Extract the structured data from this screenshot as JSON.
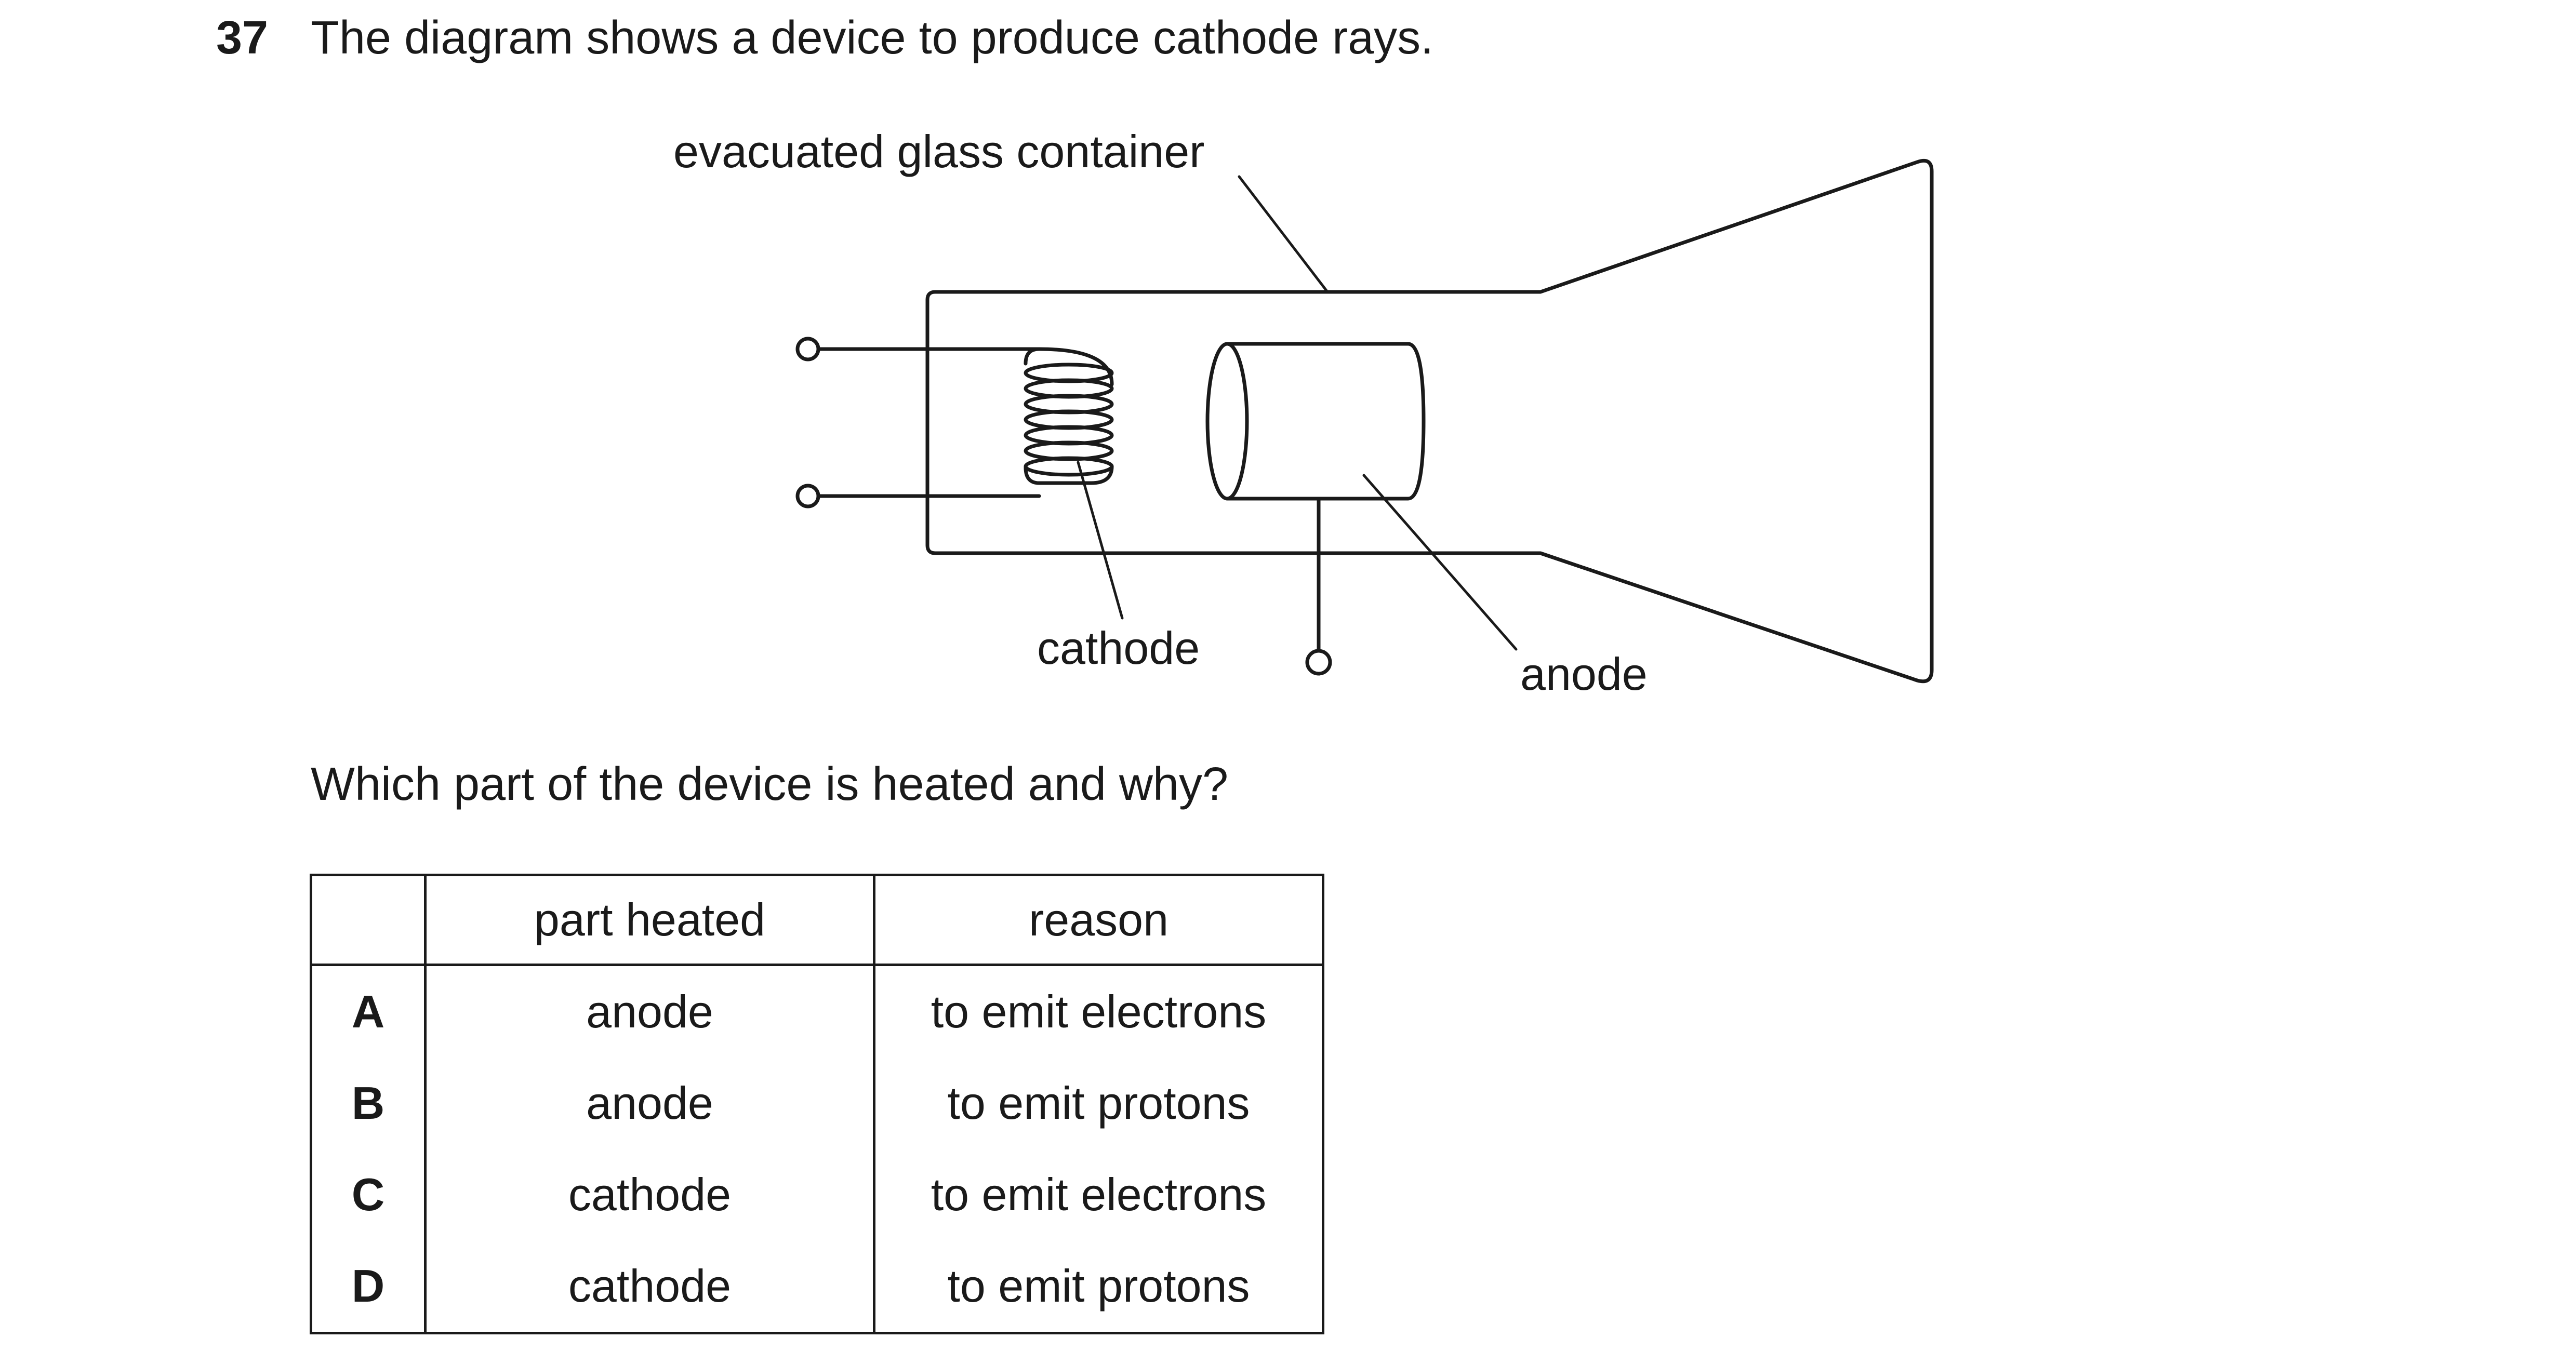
{
  "question": {
    "number": "37",
    "stem": "The diagram shows a device to produce cathode rays.",
    "prompt": "Which part of the device is heated and why?"
  },
  "diagram": {
    "labels": {
      "container": "evacuated glass container",
      "cathode": "cathode",
      "anode": "anode"
    }
  },
  "table": {
    "headers": [
      "",
      "part heated",
      "reason"
    ],
    "rows": [
      {
        "letter": "A",
        "part": "anode",
        "reason": "to emit electrons"
      },
      {
        "letter": "B",
        "part": "anode",
        "reason": "to emit protons"
      },
      {
        "letter": "C",
        "part": "cathode",
        "reason": "to emit electrons"
      },
      {
        "letter": "D",
        "part": "cathode",
        "reason": "to emit protons"
      }
    ]
  }
}
